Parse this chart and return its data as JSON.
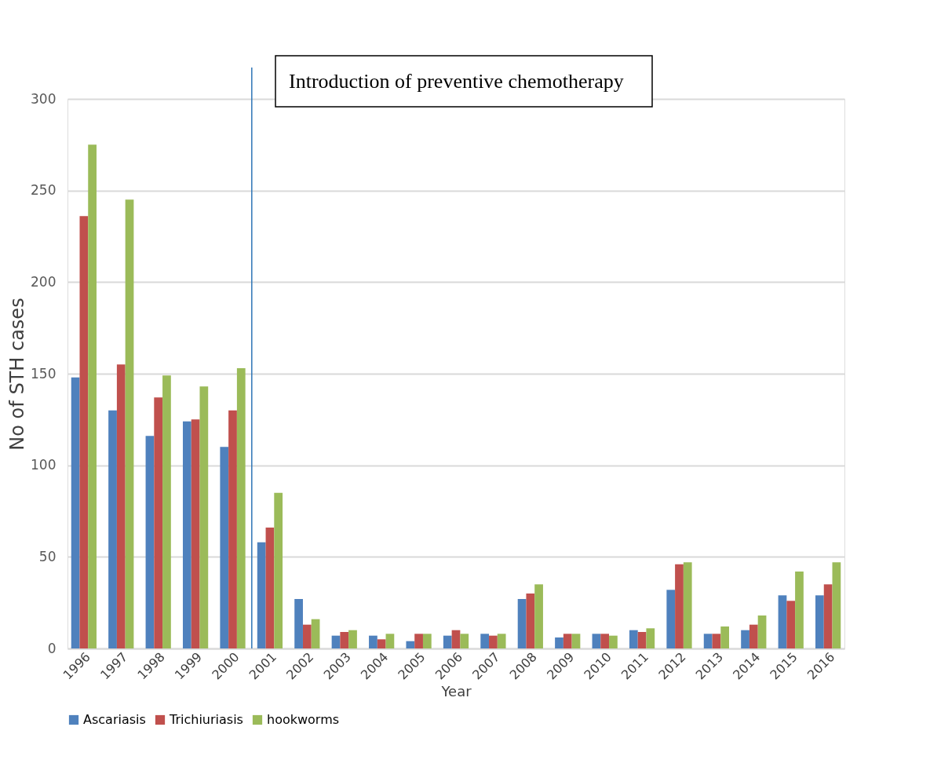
{
  "chart_data": {
    "type": "bar",
    "xlabel": "Year",
    "ylabel": "No of STH cases",
    "categories": [
      "1996",
      "1997",
      "1998",
      "1999",
      "2000",
      "2001",
      "2002",
      "2003",
      "2004",
      "2005",
      "2006",
      "2007",
      "2008",
      "2009",
      "2010",
      "2011",
      "2012",
      "2013",
      "2014",
      "2015",
      "2016"
    ],
    "series": [
      {
        "name": "Ascariasis",
        "color": "#4f81bd",
        "values": [
          148,
          130,
          116,
          124,
          110,
          58,
          27,
          7,
          7,
          4,
          7,
          8,
          27,
          6,
          8,
          10,
          32,
          8,
          10,
          29,
          29
        ]
      },
      {
        "name": "Trichiuriasis",
        "color": "#c0504d",
        "values": [
          236,
          155,
          137,
          125,
          130,
          66,
          13,
          9,
          5,
          8,
          10,
          7,
          30,
          8,
          8,
          9,
          46,
          8,
          13,
          26,
          35
        ]
      },
      {
        "name": "hookworms",
        "color": "#9bbb59",
        "values": [
          275,
          245,
          149,
          143,
          153,
          85,
          16,
          10,
          8,
          8,
          8,
          8,
          35,
          8,
          7,
          11,
          47,
          12,
          18,
          42,
          47
        ]
      }
    ],
    "ylim": [
      0,
      300
    ],
    "yticks": [
      0,
      50,
      100,
      150,
      200,
      250,
      300
    ],
    "grid": "y",
    "legend": "bottom",
    "ref_lines": [
      {
        "axis": "x",
        "value": "2001",
        "label": "Introduction of preventive chemotherapy",
        "color": "#2e75b6"
      }
    ]
  }
}
